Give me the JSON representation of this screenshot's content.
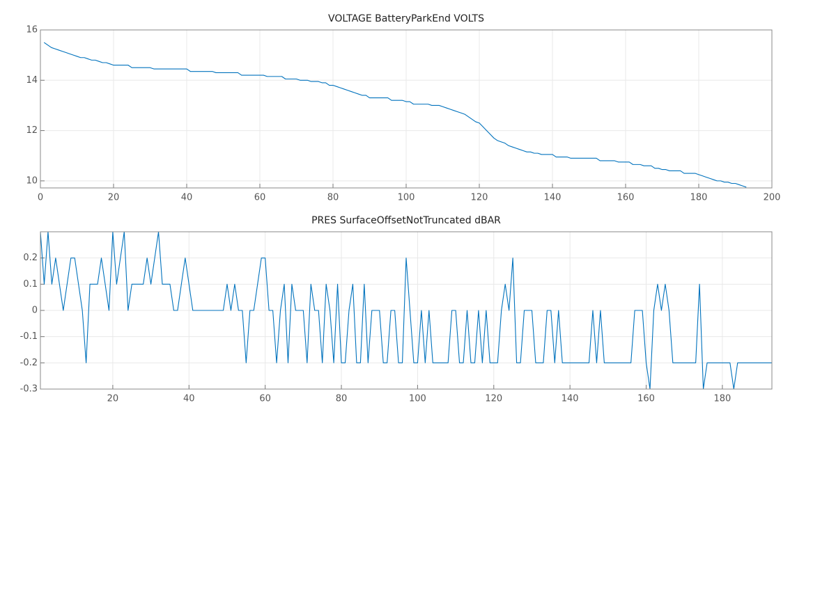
{
  "chart_data": [
    {
      "type": "line",
      "title": "VOLTAGE BatteryParkEnd VOLTS",
      "x": [
        1,
        2,
        3,
        4,
        5,
        6,
        7,
        8,
        9,
        10,
        11,
        12,
        13,
        14,
        15,
        16,
        17,
        18,
        19,
        20,
        21,
        22,
        23,
        24,
        25,
        26,
        27,
        28,
        29,
        30,
        31,
        32,
        33,
        34,
        35,
        36,
        37,
        38,
        39,
        40,
        41,
        42,
        43,
        44,
        45,
        46,
        47,
        48,
        49,
        50,
        51,
        52,
        53,
        54,
        55,
        56,
        57,
        58,
        59,
        60,
        61,
        62,
        63,
        64,
        65,
        66,
        67,
        68,
        69,
        70,
        71,
        72,
        73,
        74,
        75,
        76,
        77,
        78,
        79,
        80,
        81,
        82,
        83,
        84,
        85,
        86,
        87,
        88,
        89,
        90,
        91,
        92,
        93,
        94,
        95,
        96,
        97,
        98,
        99,
        100,
        101,
        102,
        103,
        104,
        105,
        106,
        107,
        108,
        109,
        110,
        111,
        112,
        113,
        114,
        115,
        116,
        117,
        118,
        119,
        120,
        121,
        122,
        123,
        124,
        125,
        126,
        127,
        128,
        129,
        130,
        131,
        132,
        133,
        134,
        135,
        136,
        137,
        138,
        139,
        140,
        141,
        142,
        143,
        144,
        145,
        146,
        147,
        148,
        149,
        150,
        151,
        152,
        153,
        154,
        155,
        156,
        157,
        158,
        159,
        160,
        161,
        162,
        163,
        164,
        165,
        166,
        167,
        168,
        169,
        170,
        171,
        172,
        173,
        174,
        175,
        176,
        177,
        178,
        179,
        180,
        181,
        182,
        183,
        184,
        185,
        186,
        187,
        188,
        189,
        190,
        191,
        192,
        193
      ],
      "series": [
        {
          "color": "#0072bd",
          "values": [
            15.5,
            15.4,
            15.3,
            15.25,
            15.2,
            15.15,
            15.1,
            15.05,
            15.0,
            14.95,
            14.9,
            14.9,
            14.85,
            14.8,
            14.8,
            14.75,
            14.7,
            14.7,
            14.65,
            14.6,
            14.6,
            14.6,
            14.6,
            14.6,
            14.5,
            14.5,
            14.5,
            14.5,
            14.5,
            14.5,
            14.45,
            14.45,
            14.45,
            14.45,
            14.45,
            14.45,
            14.45,
            14.45,
            14.45,
            14.45,
            14.35,
            14.35,
            14.35,
            14.35,
            14.35,
            14.35,
            14.35,
            14.3,
            14.3,
            14.3,
            14.3,
            14.3,
            14.3,
            14.3,
            14.2,
            14.2,
            14.2,
            14.2,
            14.2,
            14.2,
            14.2,
            14.15,
            14.15,
            14.15,
            14.15,
            14.15,
            14.05,
            14.05,
            14.05,
            14.05,
            14.0,
            14.0,
            14.0,
            13.95,
            13.95,
            13.95,
            13.9,
            13.9,
            13.8,
            13.8,
            13.75,
            13.7,
            13.65,
            13.6,
            13.55,
            13.5,
            13.45,
            13.4,
            13.4,
            13.3,
            13.3,
            13.3,
            13.3,
            13.3,
            13.3,
            13.2,
            13.2,
            13.2,
            13.2,
            13.15,
            13.15,
            13.05,
            13.05,
            13.05,
            13.05,
            13.05,
            13.0,
            13.0,
            13.0,
            12.95,
            12.9,
            12.85,
            12.8,
            12.75,
            12.7,
            12.65,
            12.55,
            12.45,
            12.35,
            12.3,
            12.15,
            12.0,
            11.85,
            11.7,
            11.6,
            11.55,
            11.5,
            11.4,
            11.35,
            11.3,
            11.25,
            11.2,
            11.15,
            11.15,
            11.1,
            11.1,
            11.05,
            11.05,
            11.05,
            11.05,
            10.95,
            10.95,
            10.95,
            10.95,
            10.9,
            10.9,
            10.9,
            10.9,
            10.9,
            10.9,
            10.9,
            10.9,
            10.8,
            10.8,
            10.8,
            10.8,
            10.8,
            10.75,
            10.75,
            10.75,
            10.75,
            10.65,
            10.65,
            10.65,
            10.6,
            10.6,
            10.6,
            10.5,
            10.5,
            10.45,
            10.45,
            10.4,
            10.4,
            10.4,
            10.4,
            10.3,
            10.3,
            10.3,
            10.3,
            10.25,
            10.2,
            10.15,
            10.1,
            10.05,
            10.0,
            10.0,
            9.95,
            9.95,
            9.9,
            9.9,
            9.85,
            9.8,
            9.75
          ]
        }
      ],
      "xlim": [
        0,
        200
      ],
      "xticks": [
        0,
        20,
        40,
        60,
        80,
        100,
        120,
        140,
        160,
        180,
        200
      ],
      "ylim": [
        9.72,
        16
      ],
      "yticks": [
        10,
        12,
        14,
        16
      ],
      "grid": true
    },
    {
      "type": "line",
      "title": "PRES SurfaceOffsetNotTruncated dBAR",
      "x": [
        1,
        2,
        3,
        4,
        5,
        6,
        7,
        8,
        9,
        10,
        11,
        12,
        13,
        14,
        15,
        16,
        17,
        18,
        19,
        20,
        21,
        22,
        23,
        24,
        25,
        26,
        27,
        28,
        29,
        30,
        31,
        32,
        33,
        34,
        35,
        36,
        37,
        38,
        39,
        40,
        41,
        42,
        43,
        44,
        45,
        46,
        47,
        48,
        49,
        50,
        51,
        52,
        53,
        54,
        55,
        56,
        57,
        58,
        59,
        60,
        61,
        62,
        63,
        64,
        65,
        66,
        67,
        68,
        69,
        70,
        71,
        72,
        73,
        74,
        75,
        76,
        77,
        78,
        79,
        80,
        81,
        82,
        83,
        84,
        85,
        86,
        87,
        88,
        89,
        90,
        91,
        92,
        93,
        94,
        95,
        96,
        97,
        98,
        99,
        100,
        101,
        102,
        103,
        104,
        105,
        106,
        107,
        108,
        109,
        110,
        111,
        112,
        113,
        114,
        115,
        116,
        117,
        118,
        119,
        120,
        121,
        122,
        123,
        124,
        125,
        126,
        127,
        128,
        129,
        130,
        131,
        132,
        133,
        134,
        135,
        136,
        137,
        138,
        139,
        140,
        141,
        142,
        143,
        144,
        145,
        146,
        147,
        148,
        149,
        150,
        151,
        152,
        153,
        154,
        155,
        156,
        157,
        158,
        159,
        160,
        161,
        162,
        163,
        164,
        165,
        166,
        167,
        168,
        169,
        170,
        171,
        172,
        173,
        174,
        175,
        176,
        177,
        178,
        179,
        180,
        181,
        182,
        183,
        184,
        185,
        186,
        187,
        188,
        189,
        190,
        191,
        192,
        193
      ],
      "series": [
        {
          "color": "#0072bd",
          "values": [
            0.3,
            0.1,
            0.3,
            0.1,
            0.2,
            0.1,
            0,
            0.1,
            0.2,
            0.2,
            0.1,
            0,
            -0.2,
            0.1,
            0.1,
            0.1,
            0.2,
            0.1,
            0,
            0.3,
            0.1,
            0.2,
            0.3,
            0,
            0.1,
            0.1,
            0.1,
            0.1,
            0.2,
            0.1,
            0.2,
            0.3,
            0.1,
            0.1,
            0.1,
            0,
            0,
            0.1,
            0.2,
            0.1,
            0,
            0,
            0,
            0,
            0,
            0,
            0,
            0,
            0,
            0.1,
            0,
            0.1,
            0,
            0,
            -0.2,
            0,
            0,
            0.1,
            0.2,
            0.2,
            0,
            0,
            -0.2,
            0,
            0.1,
            -0.2,
            0.1,
            0,
            0,
            0,
            -0.2,
            0.1,
            0,
            0,
            -0.2,
            0.1,
            0,
            -0.2,
            0.1,
            -0.2,
            -0.2,
            0,
            0.1,
            -0.2,
            -0.2,
            0.1,
            -0.2,
            0,
            0,
            0,
            -0.2,
            -0.2,
            0,
            0,
            -0.2,
            -0.2,
            0.2,
            0,
            -0.2,
            -0.2,
            0,
            -0.2,
            0,
            -0.2,
            -0.2,
            -0.2,
            -0.2,
            -0.2,
            0,
            0,
            -0.2,
            -0.2,
            0,
            -0.2,
            -0.2,
            0,
            -0.2,
            0,
            -0.2,
            -0.2,
            -0.2,
            0,
            0.1,
            0,
            0.2,
            -0.2,
            -0.2,
            0,
            0,
            0,
            -0.2,
            -0.2,
            -0.2,
            0,
            0,
            -0.2,
            0,
            -0.2,
            -0.2,
            -0.2,
            -0.2,
            -0.2,
            -0.2,
            -0.2,
            -0.2,
            0,
            -0.2,
            0,
            -0.2,
            -0.2,
            -0.2,
            -0.2,
            -0.2,
            -0.2,
            -0.2,
            -0.2,
            0,
            0,
            0,
            -0.2,
            -0.3,
            0,
            0.1,
            0,
            0.1,
            0,
            -0.2,
            -0.2,
            -0.2,
            -0.2,
            -0.2,
            -0.2,
            -0.2,
            0.1,
            -0.3,
            -0.2,
            -0.2,
            -0.2,
            -0.2,
            -0.2,
            -0.2,
            -0.2,
            -0.3,
            -0.2,
            -0.2,
            -0.2,
            -0.2,
            -0.2,
            -0.2,
            -0.2,
            -0.2,
            -0.2,
            -0.2
          ]
        }
      ],
      "xlim": [
        1,
        193
      ],
      "xticks": [
        20,
        40,
        60,
        80,
        100,
        120,
        140,
        160,
        180
      ],
      "ylim": [
        -0.3,
        0.3
      ],
      "yticks": [
        -0.3,
        -0.2,
        -0.1,
        0,
        0.1,
        0.2
      ],
      "grid": true
    }
  ]
}
